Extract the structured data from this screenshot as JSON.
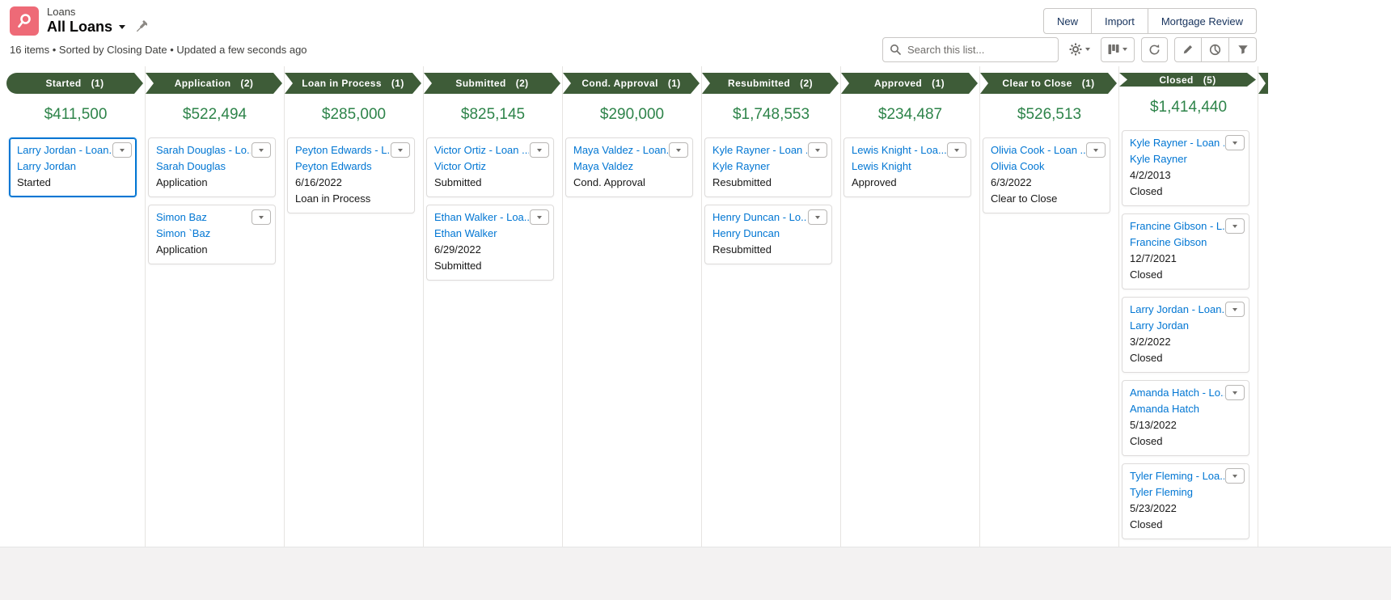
{
  "header": {
    "entity_label": "Loans",
    "list_title": "All Loans",
    "actions": [
      "New",
      "Import",
      "Mortgage Review"
    ]
  },
  "subheader": {
    "meta": "16 items • Sorted by Closing Date • Updated a few seconds ago",
    "search_placeholder": "Search this list..."
  },
  "icons": [
    "loans-object-icon",
    "chevron-down-icon",
    "pin-icon",
    "search-icon",
    "settings-gear-icon",
    "kanban-display-icon",
    "refresh-icon",
    "edit-pencil-icon",
    "chart-icon",
    "filter-icon",
    "card-menu-chevron-icon"
  ],
  "colors": {
    "link_blue": "#0176d3",
    "amount_green": "#2e844a",
    "header_green": "#3e5c38",
    "brand_pink": "#ee6a77",
    "selected_card_blue": "#0176d3"
  },
  "board": {
    "columns": [
      {
        "label": "Started",
        "count": "(1)",
        "amount": "$411,500",
        "cards": [
          {
            "title": "Larry Jordan - Loan...",
            "name": "Larry Jordan",
            "date": "",
            "stage": "Started",
            "selected": true
          }
        ]
      },
      {
        "label": "Application",
        "count": "(2)",
        "amount": "$522,494",
        "cards": [
          {
            "title": "Sarah Douglas - Lo...",
            "name": "Sarah Douglas",
            "date": "",
            "stage": "Application"
          },
          {
            "title": "Simon Baz",
            "name": "Simon `Baz",
            "date": "",
            "stage": "Application"
          }
        ]
      },
      {
        "label": "Loan in Process",
        "count": "(1)",
        "amount": "$285,000",
        "cards": [
          {
            "title": "Peyton Edwards - L...",
            "name": "Peyton Edwards",
            "date": "6/16/2022",
            "stage": "Loan in Process"
          }
        ]
      },
      {
        "label": "Submitted",
        "count": "(2)",
        "amount": "$825,145",
        "cards": [
          {
            "title": "Victor Ortiz - Loan ...",
            "name": "Victor Ortiz",
            "date": "",
            "stage": "Submitted"
          },
          {
            "title": "Ethan Walker - Loa...",
            "name": "Ethan Walker",
            "date": "6/29/2022",
            "stage": "Submitted"
          }
        ]
      },
      {
        "label": "Cond. Approval",
        "count": "(1)",
        "amount": "$290,000",
        "cards": [
          {
            "title": "Maya Valdez - Loan...",
            "name": "Maya Valdez",
            "date": "",
            "stage": "Cond. Approval"
          }
        ]
      },
      {
        "label": "Resubmitted",
        "count": "(2)",
        "amount": "$1,748,553",
        "cards": [
          {
            "title": "Kyle Rayner - Loan ...",
            "name": "Kyle Rayner",
            "date": "",
            "stage": "Resubmitted"
          },
          {
            "title": "Henry Duncan - Lo...",
            "name": "Henry Duncan",
            "date": "",
            "stage": "Resubmitted"
          }
        ]
      },
      {
        "label": "Approved",
        "count": "(1)",
        "amount": "$234,487",
        "cards": [
          {
            "title": "Lewis Knight - Loa...",
            "name": "Lewis Knight",
            "date": "",
            "stage": "Approved"
          }
        ]
      },
      {
        "label": "Clear to Close",
        "count": "(1)",
        "amount": "$526,513",
        "cards": [
          {
            "title": "Olivia Cook - Loan ...",
            "name": "Olivia Cook",
            "date": "6/3/2022",
            "stage": "Clear to Close"
          }
        ]
      },
      {
        "label": "Closed",
        "count": "(5)",
        "amount": "$1,414,440",
        "cards": [
          {
            "title": "Kyle Rayner - Loan ...",
            "name": "Kyle Rayner",
            "date": "4/2/2013",
            "stage": "Closed"
          },
          {
            "title": "Francine Gibson - L...",
            "name": "Francine Gibson",
            "date": "12/7/2021",
            "stage": "Closed"
          },
          {
            "title": "Larry Jordan - Loan...",
            "name": "Larry Jordan",
            "date": "3/2/2022",
            "stage": "Closed"
          },
          {
            "title": "Amanda Hatch - Lo...",
            "name": "Amanda Hatch",
            "date": "5/13/2022",
            "stage": "Closed"
          },
          {
            "title": "Tyler Fleming - Loa...",
            "name": "Tyler Fleming",
            "date": "5/23/2022",
            "stage": "Closed"
          }
        ]
      }
    ]
  }
}
